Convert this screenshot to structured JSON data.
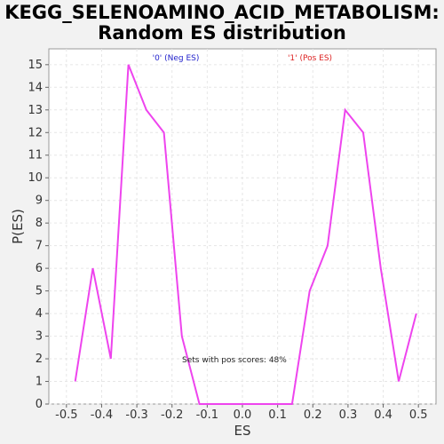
{
  "chart_data": {
    "type": "line",
    "title": "KEGG_SELENOAMINO_ACID_METABOLISM:",
    "subtitle": "Random ES distribution",
    "xlabel": "ES",
    "ylabel": "P(ES)",
    "xlim": [
      -0.55,
      0.55
    ],
    "ylim": [
      0,
      15.7
    ],
    "x_ticks": [
      -0.5,
      -0.4,
      -0.3,
      -0.2,
      -0.1,
      0.0,
      0.1,
      0.2,
      0.3,
      0.4,
      0.5
    ],
    "x_tick_labels": [
      "-0.5",
      "-0.4",
      "-0.3",
      "-0.2",
      "-0.1",
      "0.0",
      "0.1",
      "0.2",
      "0.3",
      "0.4",
      "0.5"
    ],
    "y_ticks": [
      0,
      1,
      2,
      3,
      4,
      5,
      6,
      7,
      8,
      9,
      10,
      11,
      12,
      13,
      14,
      15
    ],
    "grid": true,
    "series": [
      {
        "color": "#ee44ee",
        "x": [
          -0.475,
          -0.425,
          -0.374,
          -0.324,
          -0.273,
          -0.223,
          -0.172,
          -0.122,
          -0.071,
          -0.021,
          0.03,
          0.08,
          0.141,
          0.191,
          0.242,
          0.292,
          0.343,
          0.393,
          0.444,
          0.494
        ],
        "y": [
          1,
          6,
          2,
          15,
          13,
          12,
          3,
          0,
          0,
          0,
          0,
          0,
          0,
          5,
          7,
          13,
          12,
          6,
          1,
          4
        ]
      }
    ],
    "legend_neg": "'0' (Neg ES)",
    "legend_pos": "'1' (Pos ES)",
    "legend_neg_color": "#2222cc",
    "legend_pos_color": "#dd2222",
    "annotation": "Sets with pos scores: 48%"
  }
}
